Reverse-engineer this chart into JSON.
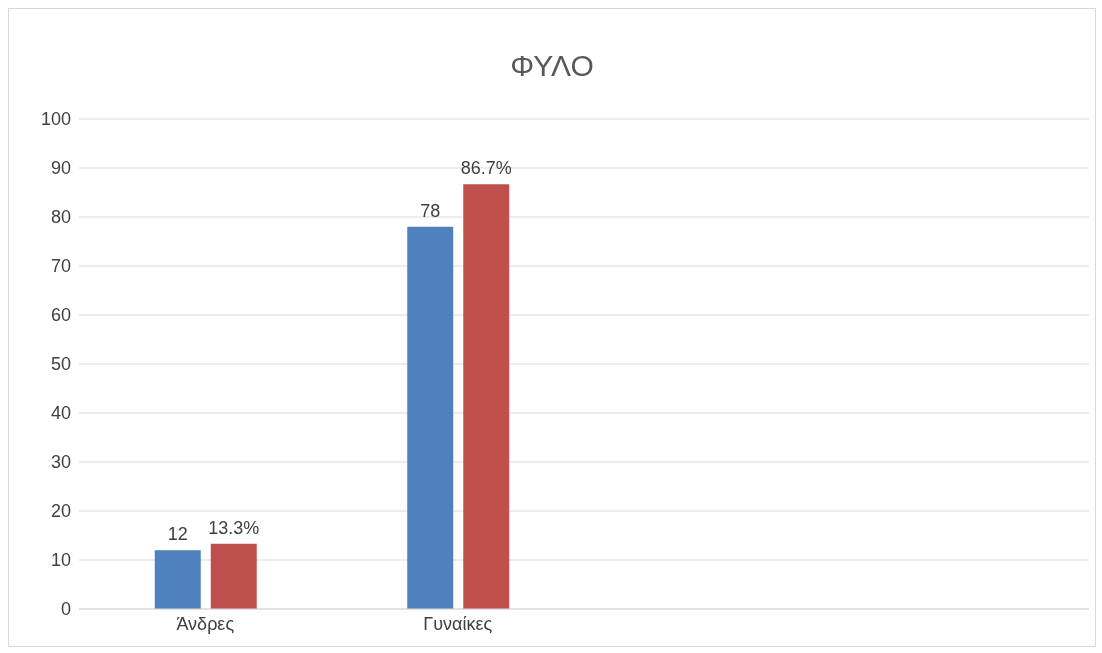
{
  "chart_data": {
    "type": "bar",
    "title": "ΦΥΛΟ",
    "categories": [
      "Άνδρες",
      "Γυναίκες",
      null,
      null
    ],
    "series": [
      {
        "color": "#4f81bd",
        "values": [
          12,
          78,
          null,
          null
        ],
        "value_labels": [
          "12",
          "78",
          null,
          null
        ]
      },
      {
        "color": "#c0504d",
        "values": [
          13.3,
          86.7,
          null,
          null
        ],
        "value_labels": [
          "13.3%",
          "86.7%",
          null,
          null
        ]
      }
    ],
    "ylim": [
      0,
      100
    ],
    "yticks": [
      0,
      10,
      20,
      30,
      40,
      50,
      60,
      70,
      80,
      90,
      100
    ],
    "grid": "y",
    "legend": false
  }
}
